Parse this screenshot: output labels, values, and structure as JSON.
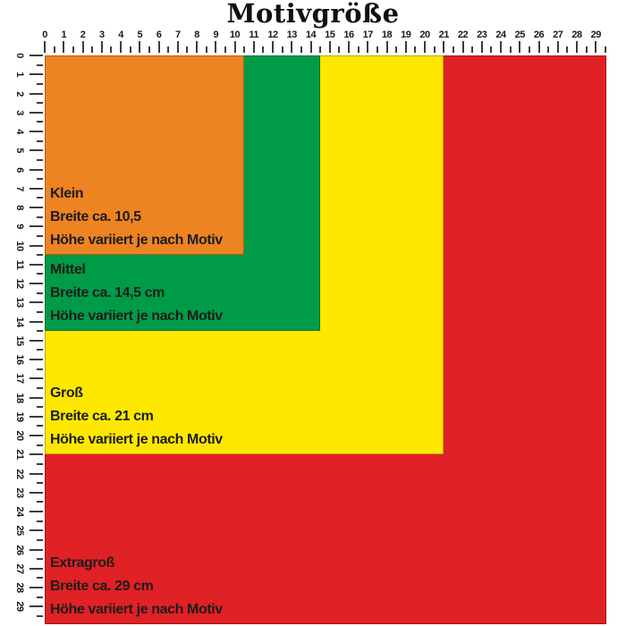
{
  "title": "Motivgröße",
  "ruler": {
    "start": 0,
    "end": 29,
    "step": 1,
    "half_ticks": true,
    "tick_color": "#3c3c3c",
    "number_color": "#191919"
  },
  "sizes": [
    {
      "name": "Extragroß",
      "width_cm": 29,
      "color": "#e02125",
      "lines": [
        "Extragroß",
        "Breite ca. 29 cm",
        "Höhe variiert je nach Motiv"
      ]
    },
    {
      "name": "Groß",
      "width_cm": 21,
      "color": "#ffe800",
      "lines": [
        "Groß",
        "Breite ca. 21 cm",
        "Höhe variiert je nach Motiv"
      ]
    },
    {
      "name": "Mittel",
      "width_cm": 14.5,
      "color": "#009b48",
      "lines": [
        "Mittel",
        "Breite ca. 14,5 cm",
        "Höhe variiert je nach Motiv"
      ]
    },
    {
      "name": "Klein",
      "width_cm": 10.5,
      "color": "#ee8322",
      "lines": [
        "Klein",
        "Breite ca. 10,5",
        "Höhe variiert je nach Motiv"
      ]
    }
  ]
}
